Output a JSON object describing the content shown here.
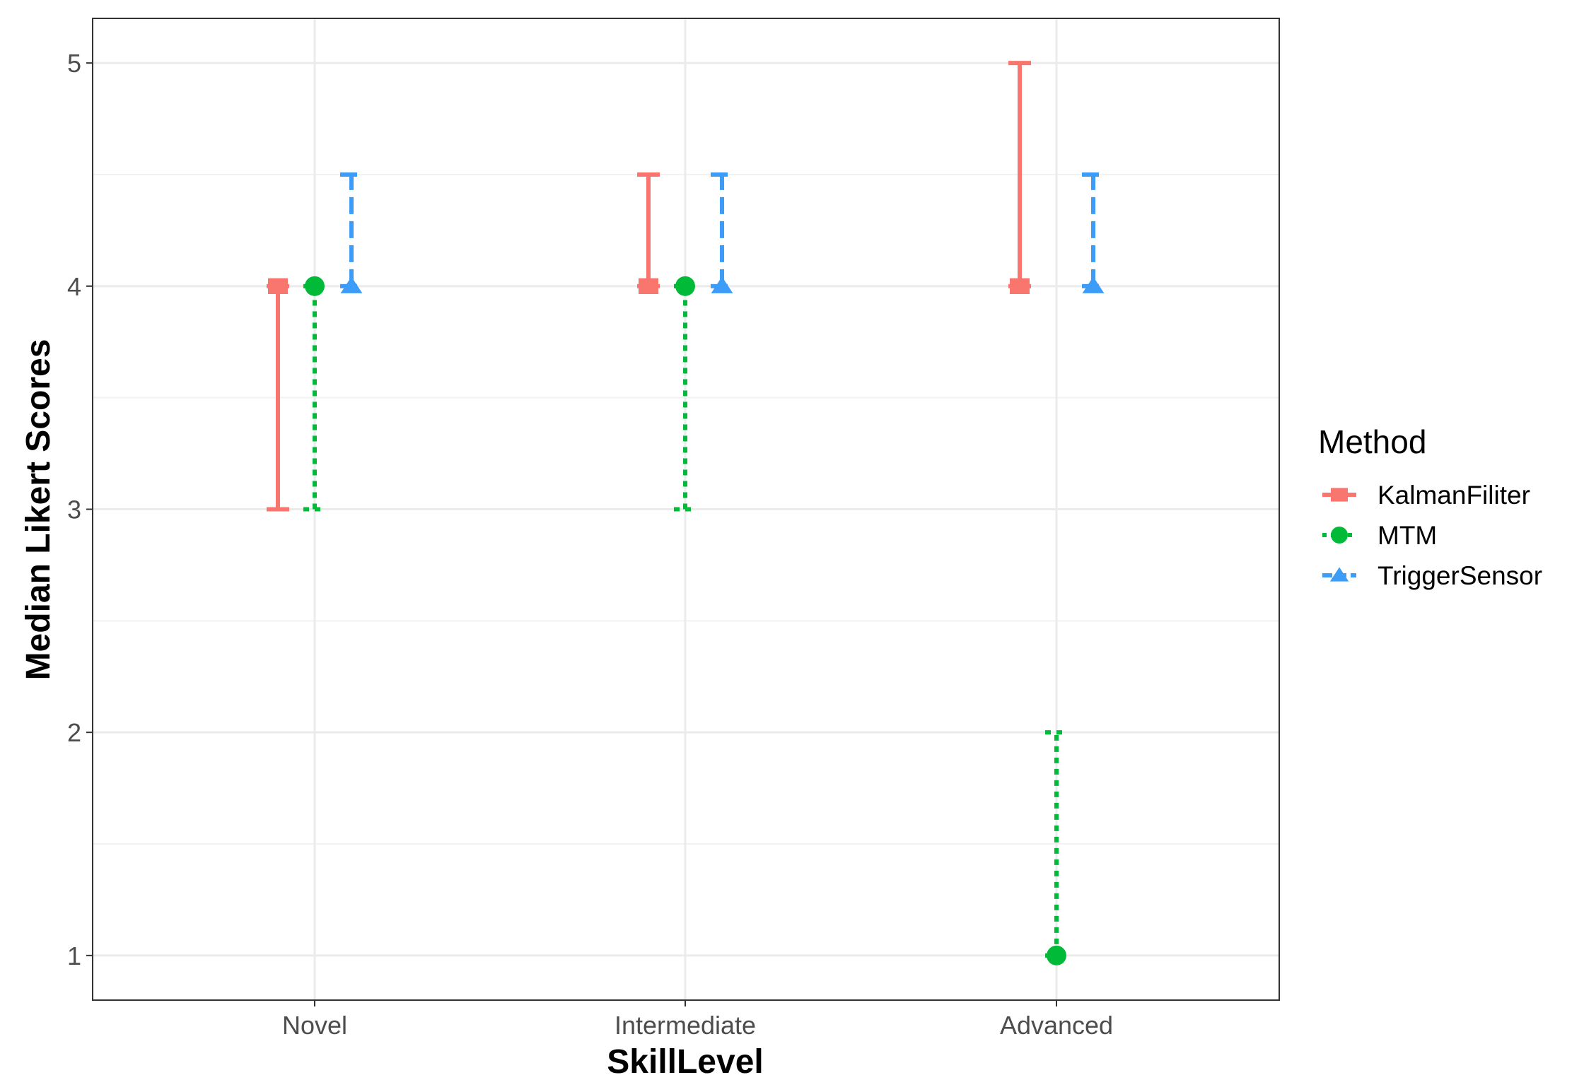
{
  "chart_data": {
    "type": "errorbar",
    "xlabel": "SkillLevel",
    "ylabel": "Median Likert Scores",
    "categories": [
      "Novel",
      "Intermediate",
      "Advanced"
    ],
    "ylim": [
      0.8,
      5.2
    ],
    "yticks": [
      1,
      2,
      3,
      4,
      5
    ],
    "grid": true,
    "legend_title": "Method",
    "legend_position": "right",
    "series": [
      {
        "name": "KalmanFiliter",
        "color": "#f8766d",
        "marker": "square",
        "line_style": "solid",
        "points": [
          {
            "category": "Novel",
            "median": 4,
            "low": 3,
            "high": 4
          },
          {
            "category": "Intermediate",
            "median": 4,
            "low": 4,
            "high": 4.5
          },
          {
            "category": "Advanced",
            "median": 4,
            "low": 4,
            "high": 5
          }
        ]
      },
      {
        "name": "MTM",
        "color": "#00ba38",
        "marker": "circle",
        "line_style": "dotted",
        "points": [
          {
            "category": "Novel",
            "median": 4,
            "low": 3,
            "high": 4
          },
          {
            "category": "Intermediate",
            "median": 4,
            "low": 3,
            "high": 4
          },
          {
            "category": "Advanced",
            "median": 1,
            "low": 1,
            "high": 2
          }
        ]
      },
      {
        "name": "TriggerSensor",
        "color": "#3d9cf7",
        "marker": "triangle",
        "line_style": "dashed",
        "points": [
          {
            "category": "Novel",
            "median": 4,
            "low": 4,
            "high": 4.5
          },
          {
            "category": "Intermediate",
            "median": 4,
            "low": 4,
            "high": 4.5
          },
          {
            "category": "Advanced",
            "median": 4,
            "low": 4,
            "high": 4.5
          }
        ]
      }
    ]
  }
}
